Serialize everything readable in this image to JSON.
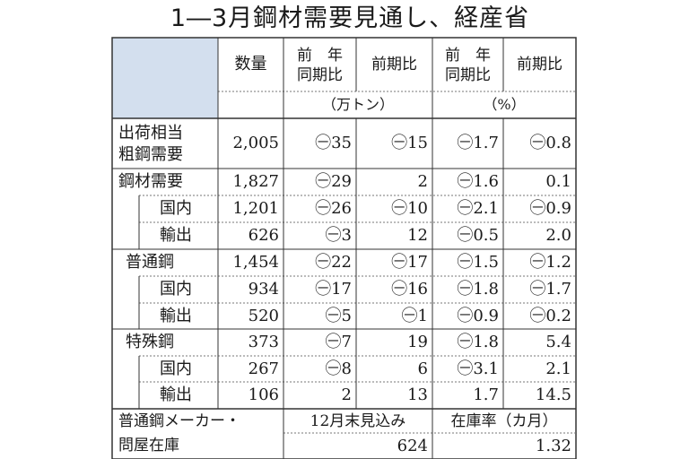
{
  "title": "1―3月鋼材需要見通し、経産省",
  "header": {
    "col_quantity": "数量",
    "col_yoy_qty": [
      "前　年",
      "同期比"
    ],
    "col_qoq_qty": "前期比",
    "col_yoy_pct": [
      "前　年",
      "同期比"
    ],
    "col_qoq_pct": "前期比",
    "unit_qty": "（万トン）",
    "unit_pct": "（%）"
  },
  "rows": [
    {
      "label": [
        "出荷相当",
        "粗鋼需要"
      ],
      "qty": "2,005",
      "yoy": "㊀35",
      "qoq": "㊀15",
      "yoy_pct": "㊀1.7",
      "qoq_pct": "㊀0.8"
    },
    {
      "label": "鋼材需要",
      "qty": "1,827",
      "yoy": "㊀29",
      "qoq": "2",
      "yoy_pct": "㊀1.6",
      "qoq_pct": "0.1"
    },
    {
      "label": "国内",
      "qty": "1,201",
      "yoy": "㊀26",
      "qoq": "㊀10",
      "yoy_pct": "㊀2.1",
      "qoq_pct": "㊀0.9"
    },
    {
      "label": "輸出",
      "qty": "626",
      "yoy": "㊀3",
      "qoq": "12",
      "yoy_pct": "㊀0.5",
      "qoq_pct": "2.0"
    },
    {
      "label": "普通鋼",
      "qty": "1,454",
      "yoy": "㊀22",
      "qoq": "㊀17",
      "yoy_pct": "㊀1.5",
      "qoq_pct": "㊀1.2"
    },
    {
      "label": "国内",
      "qty": "934",
      "yoy": "㊀17",
      "qoq": "㊀16",
      "yoy_pct": "㊀1.8",
      "qoq_pct": "㊀1.7"
    },
    {
      "label": "輸出",
      "qty": "520",
      "yoy": "㊀5",
      "qoq": "㊀1",
      "yoy_pct": "㊀0.9",
      "qoq_pct": "㊀0.2"
    },
    {
      "label": "特殊鋼",
      "qty": "373",
      "yoy": "㊀7",
      "qoq": "19",
      "yoy_pct": "㊀1.8",
      "qoq_pct": "5.4"
    },
    {
      "label": "国内",
      "qty": "267",
      "yoy": "㊀8",
      "qoq": "6",
      "yoy_pct": "㊀3.1",
      "qoq_pct": "2.1"
    },
    {
      "label": "輸出",
      "qty": "106",
      "yoy": "2",
      "qoq": "13",
      "yoy_pct": "1.7",
      "qoq_pct": "14.5"
    }
  ],
  "footer": {
    "label": [
      "普通鋼メーカー・",
      "問屋在庫"
    ],
    "col1_header": "12月末見込み",
    "col2_header": "在庫率（カ月）",
    "col1_value": "624",
    "col2_value": "1.32"
  },
  "colors": {
    "header_fill": "#d3dfee",
    "line": "#333333",
    "dotted": "#777777"
  }
}
